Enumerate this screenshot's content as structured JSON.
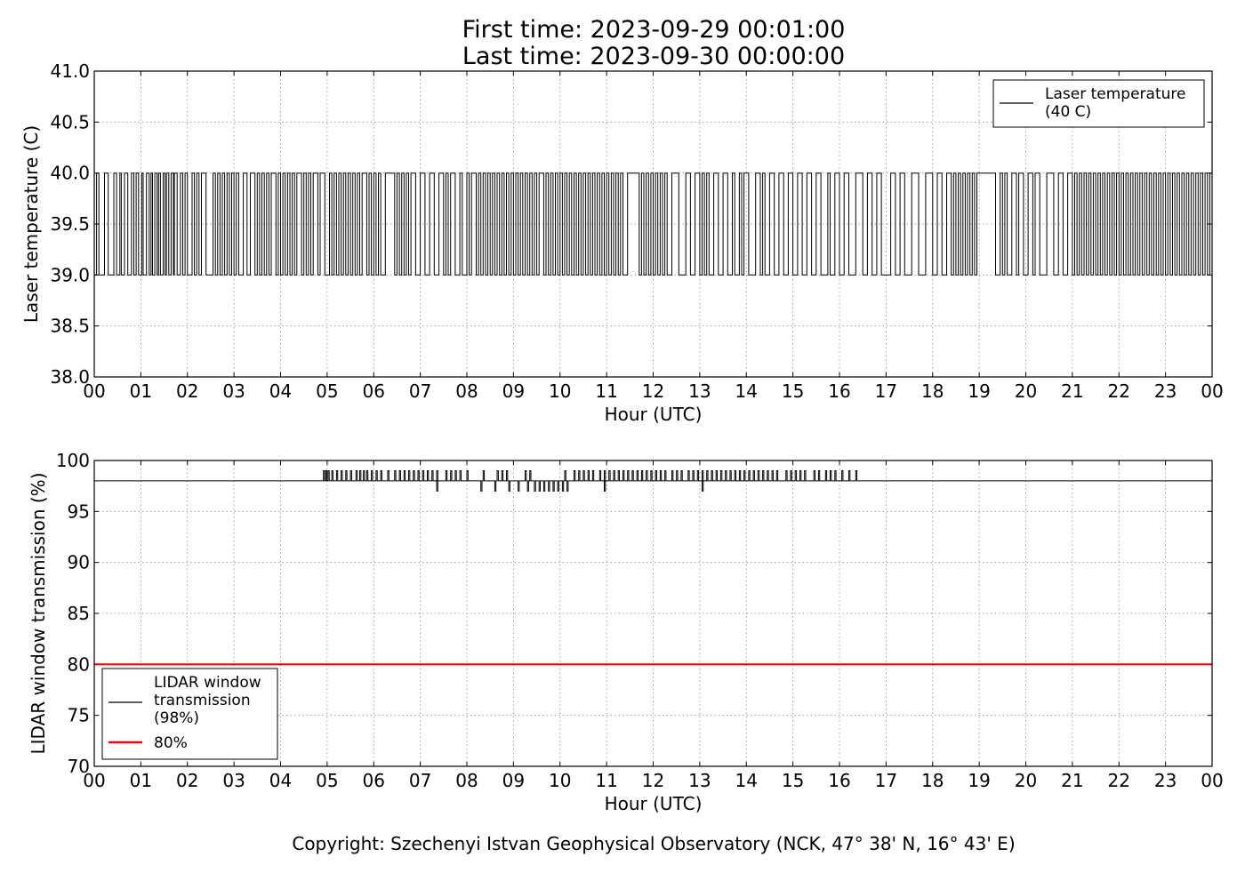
{
  "header": {
    "first_time": "First time: 2023-09-29 00:01:00",
    "last_time": "Last time: 2023-09-30 00:00:00"
  },
  "footer": {
    "copyright": "Copyright: Szechenyi Istvan Geophysical Observatory (NCK, 47° 38' N, 16° 43' E)"
  },
  "chart_data": [
    {
      "type": "line",
      "title": "",
      "xlabel": "Hour (UTC)",
      "ylabel": "Laser temperature (C)",
      "xlim": [
        0,
        24
      ],
      "ylim": [
        38.0,
        41.0
      ],
      "x_tick_labels": [
        "00",
        "01",
        "02",
        "03",
        "04",
        "05",
        "06",
        "07",
        "08",
        "09",
        "10",
        "11",
        "12",
        "13",
        "14",
        "15",
        "16",
        "17",
        "18",
        "19",
        "20",
        "21",
        "22",
        "23",
        "00"
      ],
      "y_ticks": [
        38.0,
        38.5,
        39.0,
        39.5,
        40.0,
        40.5,
        41.0
      ],
      "y_tick_labels": [
        "38.0",
        "38.5",
        "39.0",
        "39.5",
        "40.0",
        "40.5",
        "41.0"
      ],
      "grid": true,
      "legend_position": "top-right",
      "series": [
        {
          "name": "Laser temperature\n(40 C)",
          "color": "#000000",
          "note_values": "signal toggles between 39.0 and 40.0 throughout the day",
          "levels": [
            39.0,
            40.0
          ],
          "toggle_hours": [
            0.05,
            0.1,
            0.22,
            0.3,
            0.42,
            0.48,
            0.55,
            0.58,
            0.65,
            0.72,
            0.8,
            0.85,
            0.9,
            0.95,
            1.02,
            1.05,
            1.12,
            1.18,
            1.22,
            1.25,
            1.3,
            1.35,
            1.38,
            1.42,
            1.48,
            1.52,
            1.55,
            1.6,
            1.65,
            1.7,
            1.72,
            1.78,
            1.85,
            1.9,
            1.95,
            2.0,
            2.1,
            2.15,
            2.2,
            2.25,
            2.3,
            2.4,
            2.55,
            2.6,
            2.65,
            2.7,
            2.75,
            2.8,
            2.85,
            2.9,
            2.95,
            3.0,
            3.05,
            3.1,
            3.2,
            3.28,
            3.35,
            3.45,
            3.5,
            3.55,
            3.6,
            3.65,
            3.7,
            3.75,
            3.8,
            3.9,
            3.95,
            4.0,
            4.05,
            4.1,
            4.15,
            4.2,
            4.25,
            4.3,
            4.35,
            4.45,
            4.5,
            4.55,
            4.6,
            4.65,
            4.7,
            4.8,
            4.85,
            4.95,
            5.05,
            5.1,
            5.15,
            5.2,
            5.25,
            5.3,
            5.35,
            5.4,
            5.45,
            5.5,
            5.55,
            5.6,
            5.65,
            5.7,
            5.75,
            5.85,
            5.9,
            5.95,
            6.0,
            6.05,
            6.1,
            6.15,
            6.25,
            6.45,
            6.5,
            6.55,
            6.6,
            6.65,
            6.7,
            6.75,
            6.8,
            6.9,
            7.0,
            7.1,
            7.2,
            7.3,
            7.4,
            7.5,
            7.55,
            7.6,
            7.65,
            7.75,
            7.85,
            7.9,
            8.0,
            8.05,
            8.1,
            8.2,
            8.25,
            8.3,
            8.35,
            8.4,
            8.45,
            8.5,
            8.55,
            8.6,
            8.65,
            8.7,
            8.75,
            8.8,
            8.85,
            8.9,
            8.95,
            9.0,
            9.05,
            9.1,
            9.15,
            9.2,
            9.25,
            9.3,
            9.35,
            9.4,
            9.45,
            9.5,
            9.55,
            9.65,
            9.7,
            9.75,
            9.8,
            9.85,
            9.9,
            9.95,
            10.0,
            10.05,
            10.1,
            10.15,
            10.2,
            10.25,
            10.3,
            10.35,
            10.4,
            10.45,
            10.5,
            10.55,
            10.6,
            10.65,
            10.7,
            10.75,
            10.8,
            10.85,
            10.9,
            10.95,
            11.0,
            11.05,
            11.1,
            11.15,
            11.2,
            11.25,
            11.3,
            11.35,
            11.45,
            11.7,
            11.75,
            11.8,
            11.85,
            11.9,
            11.95,
            12.0,
            12.05,
            12.1,
            12.15,
            12.2,
            12.25,
            12.3,
            12.4,
            12.55,
            12.7,
            12.8,
            12.9,
            13.0,
            13.05,
            13.1,
            13.15,
            13.2,
            13.3,
            13.4,
            13.5,
            13.6,
            13.7,
            13.75,
            13.85,
            13.9,
            13.95,
            14.05,
            14.2,
            14.3,
            14.35,
            14.4,
            14.5,
            14.6,
            14.7,
            14.8,
            14.9,
            15.0,
            15.1,
            15.2,
            15.3,
            15.4,
            15.5,
            15.6,
            15.75,
            15.8,
            15.9,
            16.0,
            16.1,
            16.2,
            16.35,
            16.5,
            16.6,
            16.7,
            16.8,
            16.9,
            17.1,
            17.2,
            17.3,
            17.4,
            17.55,
            17.7,
            17.85,
            18.0,
            18.1,
            18.2,
            18.3,
            18.4,
            18.45,
            18.5,
            18.55,
            18.6,
            18.65,
            18.7,
            18.75,
            18.8,
            18.85,
            18.9,
            18.95,
            19.35,
            19.45,
            19.5,
            19.55,
            19.6,
            19.7,
            19.8,
            19.85,
            19.95,
            20.05,
            20.15,
            20.2,
            20.3,
            20.45,
            20.6,
            20.7,
            20.8,
            20.9,
            21.0,
            21.05,
            21.1,
            21.15,
            21.2,
            21.25,
            21.3,
            21.35,
            21.4,
            21.45,
            21.5,
            21.55,
            21.6,
            21.65,
            21.7,
            21.75,
            21.8,
            21.85,
            21.9,
            21.95,
            22.0,
            22.05,
            22.1,
            22.15,
            22.2,
            22.25,
            22.3,
            22.35,
            22.4,
            22.45,
            22.5,
            22.55,
            22.6,
            22.65,
            22.7,
            22.75,
            22.8,
            22.85,
            22.9,
            22.95,
            23.0,
            23.05,
            23.1,
            23.15,
            23.2,
            23.25,
            23.3,
            23.35,
            23.4,
            23.45,
            23.5,
            23.55,
            23.6,
            23.65,
            23.7,
            23.75,
            23.8,
            23.85,
            23.9,
            23.95
          ]
        }
      ]
    },
    {
      "type": "line",
      "title": "",
      "xlabel": "Hour (UTC)",
      "ylabel": "LIDAR window transmission (%)",
      "xlim": [
        0,
        24
      ],
      "ylim": [
        70,
        100
      ],
      "x_tick_labels": [
        "00",
        "01",
        "02",
        "03",
        "04",
        "05",
        "06",
        "07",
        "08",
        "09",
        "10",
        "11",
        "12",
        "13",
        "14",
        "15",
        "16",
        "17",
        "18",
        "19",
        "20",
        "21",
        "22",
        "23",
        "00"
      ],
      "y_ticks": [
        70,
        75,
        80,
        85,
        90,
        95,
        100
      ],
      "y_tick_labels": [
        "70",
        "75",
        "80",
        "85",
        "90",
        "95",
        "100"
      ],
      "grid": true,
      "legend_position": "lower-left",
      "series": [
        {
          "name": "LIDAR window\ntransmission\n(98%)",
          "color": "#000000",
          "baseline": 98,
          "spikes_up_to_99_hours": [
            4.92,
            4.97,
            5.02,
            5.1,
            5.2,
            5.3,
            5.4,
            5.5,
            5.62,
            5.7,
            5.78,
            5.85,
            5.95,
            6.05,
            6.15,
            6.3,
            6.45,
            6.55,
            6.65,
            6.75,
            6.85,
            6.95,
            7.05,
            7.15,
            7.25,
            7.35,
            7.55,
            7.65,
            7.75,
            7.85,
            8.0,
            8.35,
            8.65,
            8.75,
            8.85,
            9.25,
            9.35,
            10.1,
            10.3,
            10.4,
            10.5,
            10.6,
            10.7,
            10.85,
            10.95,
            11.05,
            11.15,
            11.25,
            11.35,
            11.45,
            11.55,
            11.65,
            11.75,
            11.85,
            11.95,
            12.05,
            12.15,
            12.25,
            12.4,
            12.5,
            12.6,
            12.75,
            12.85,
            12.95,
            13.05,
            13.15,
            13.25,
            13.35,
            13.45,
            13.55,
            13.65,
            13.75,
            13.85,
            13.95,
            14.05,
            14.15,
            14.25,
            14.35,
            14.45,
            14.55,
            14.65,
            14.85,
            14.95,
            15.05,
            15.15,
            15.25,
            15.45,
            15.55,
            15.7,
            15.8,
            15.9,
            16.05,
            16.2,
            16.35
          ],
          "dips_to_97_hours": [
            7.35,
            8.3,
            8.6,
            8.9,
            9.1,
            9.3,
            9.45,
            9.55,
            9.65,
            9.75,
            9.85,
            9.95,
            10.05,
            10.15,
            10.95,
            13.05
          ]
        },
        {
          "name": "80%",
          "color": "#ff0000",
          "values_constant": 80
        }
      ]
    }
  ]
}
